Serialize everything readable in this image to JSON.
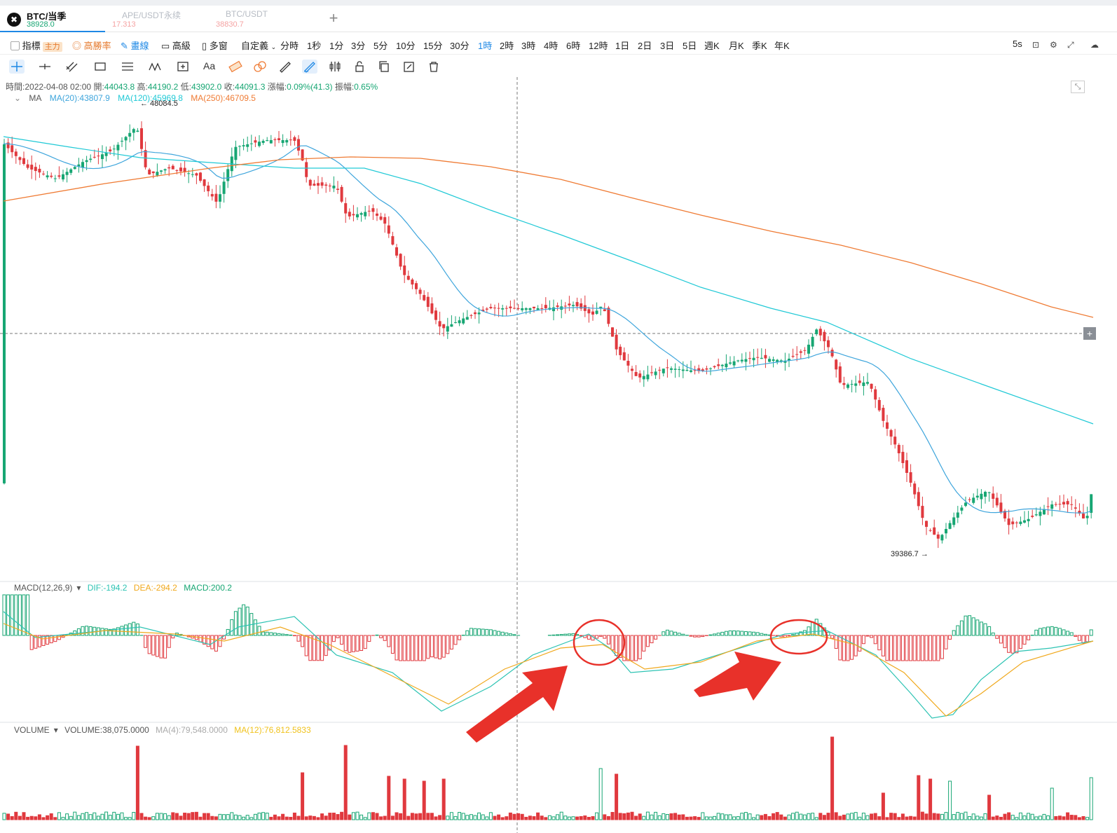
{
  "tabs": [
    {
      "name": "BTC/当季",
      "price": "38928.0"
    },
    {
      "name": "APE/USDT永续",
      "price": "17.313"
    },
    {
      "name": "BTC/USDT",
      "price": "38830.7"
    }
  ],
  "tab_add": "+",
  "toolbar": {
    "indicator": "指標",
    "indicator_badge": "主力",
    "winrate": "高勝率",
    "draw": "畫線",
    "advanced": "高級",
    "multiwindow": "多窗",
    "custom": "自定義",
    "intervals": [
      "分時",
      "1秒",
      "1分",
      "3分",
      "5分",
      "10分",
      "15分",
      "30分",
      "1時",
      "2時",
      "3時",
      "4時",
      "6時",
      "12時",
      "1日",
      "2日",
      "3日",
      "5日",
      "週K",
      "月K",
      "季K",
      "年K"
    ],
    "active_interval": "1時",
    "refresh": "5s"
  },
  "draw_tools": [
    "crosshair",
    "horizontal-line",
    "parallel-lines",
    "rectangle",
    "fib-levels",
    "wave",
    "measure",
    "text",
    "ruler-tool",
    "erase-tool",
    "pen",
    "brush",
    "candle-style",
    "lock",
    "copy",
    "edit",
    "trash"
  ],
  "draw_text_tool": "Aa",
  "info": {
    "time_label": "時間:",
    "time": "2022-04-08 02:00",
    "open_label": "開:",
    "open": "44043.8",
    "high_label": "高:",
    "high": "44190.2",
    "low_label": "低:",
    "low": "43902.0",
    "close_label": "收:",
    "close": "44091.3",
    "change_label": "漲幅:",
    "change": "0.09%(41.3)",
    "amp_label": "振幅:",
    "amp": "0.65%"
  },
  "ma": {
    "label": "MA",
    "ma20": "MA(20):43807.9",
    "ma120": "MA(120):45969.8",
    "ma250": "MA(250):46709.5"
  },
  "price_markers": {
    "high": "← 48084.5",
    "low": "39386.7 →"
  },
  "macd": {
    "label": "MACD(12,26,9)",
    "dif": "DIF:-194.2",
    "dea": "DEA:-294.2",
    "macd": "MACD:200.2"
  },
  "volume": {
    "label": "VOLUME",
    "value": "VOLUME:38,075.0000",
    "ma4": "MA(4):79,548.0000",
    "ma12": "MA(12):76,812.5833"
  },
  "crosshair_button": "+",
  "colors": {
    "up": "#17a673",
    "down": "#e0393e",
    "ma20": "#3ea5dc",
    "ma120": "#20c9d6",
    "ma250": "#ef7b34",
    "dif": "#2cc3b3",
    "dea": "#f0a81c",
    "annotation": "#e8312a",
    "accent": "#1e88e5"
  },
  "chart_data": {
    "type": "candlestick",
    "interval": "1時",
    "visible_high": 48084.5,
    "visible_low": 39386.7,
    "ma_periods": [
      20,
      120,
      250
    ],
    "macd_params": [
      12,
      26,
      9
    ],
    "highlighted_candle": {
      "open": 44043.8,
      "high": 44190.2,
      "low": 43902.0,
      "close": 44091.3
    },
    "annotations": [
      "red-circle-macd-1",
      "red-circle-macd-2",
      "red-arrow-1",
      "red-arrow-2"
    ]
  }
}
